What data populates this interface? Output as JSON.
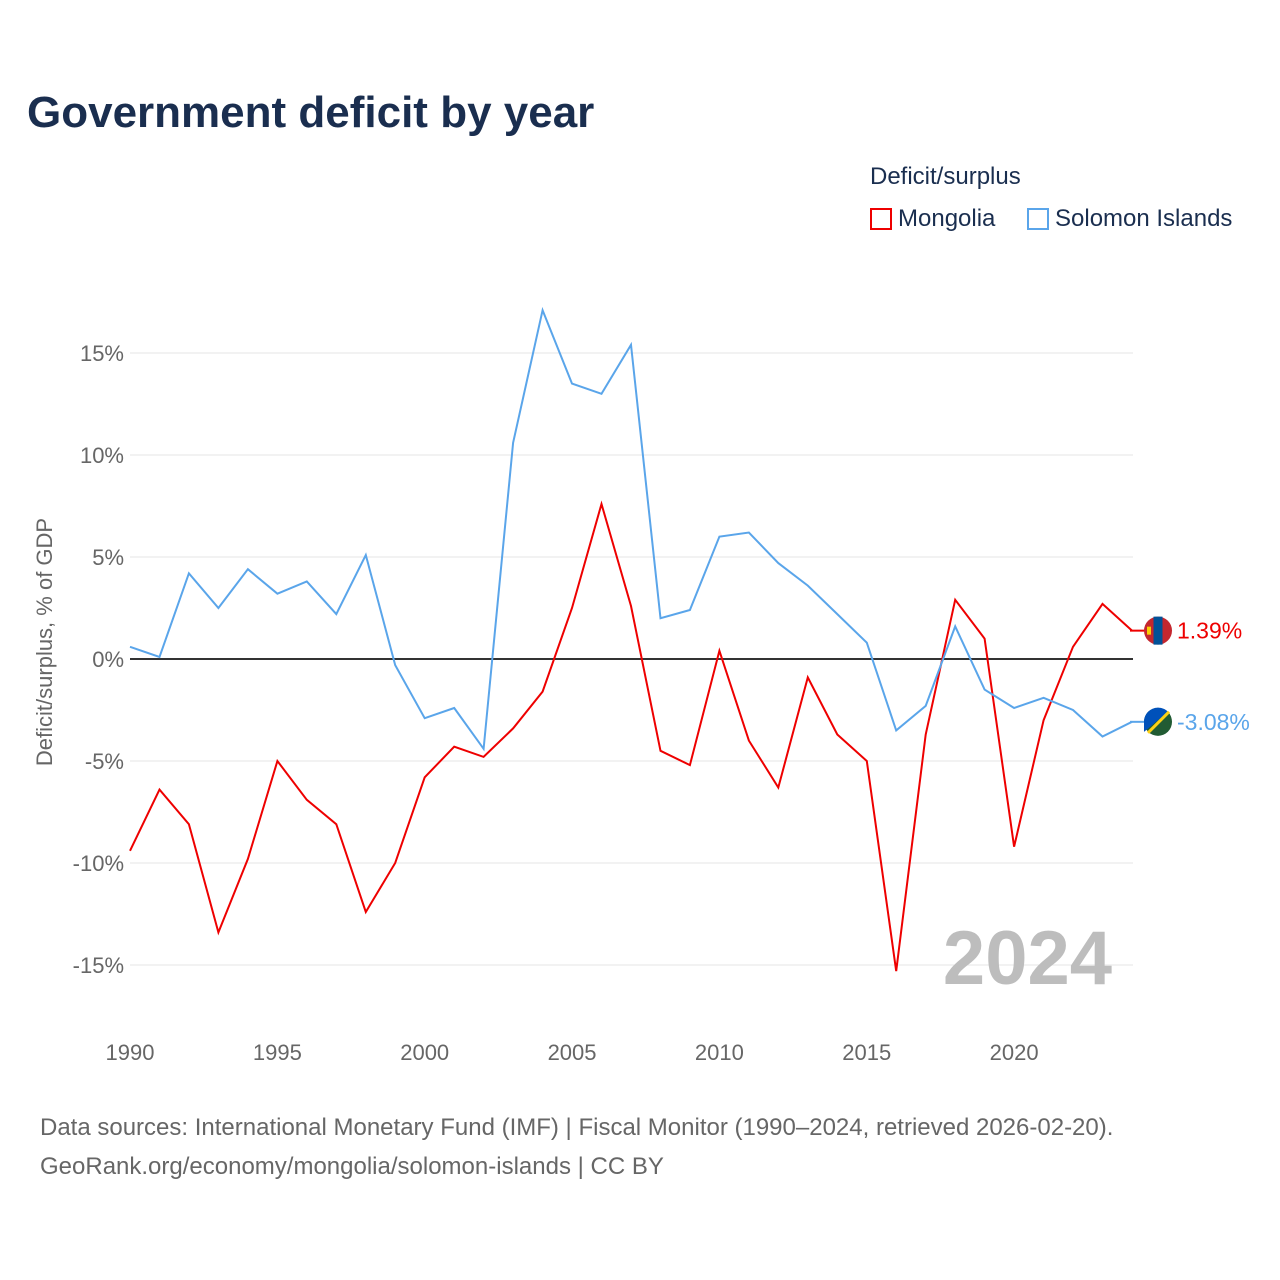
{
  "title": "Government deficit by year",
  "legend": {
    "title": "Deficit/surplus",
    "items": [
      {
        "name": "Mongolia",
        "color": "#ee0000"
      },
      {
        "name": "Solomon Islands",
        "color": "#5aa5ea"
      }
    ]
  },
  "watermark_year": "2024",
  "source_lines": [
    "Data sources: International Monetary Fund (IMF) | Fiscal Monitor (1990–2024, retrieved 2026-02-20).",
    "GeoRank.org/economy/mongolia/solomon-islands | CC BY"
  ],
  "end_labels": {
    "Mongolia": "1.39%",
    "Solomon Islands": "-3.08%"
  },
  "chart_data": {
    "type": "line",
    "title": "Government deficit by year",
    "xlabel": "",
    "ylabel": "Deficit/surplus, % of GDP",
    "xlim": [
      1990,
      2024
    ],
    "ylim": [
      -18,
      18
    ],
    "xticks": [
      1990,
      1995,
      2000,
      2005,
      2010,
      2015,
      2020
    ],
    "yticks": [
      15,
      10,
      5,
      0,
      -5,
      -10,
      -15
    ],
    "ytick_labels": [
      "15%",
      "10%",
      "5%",
      "0%",
      "-5%",
      "-10%",
      "-15%"
    ],
    "grid": true,
    "legend_position": "top-right",
    "x": [
      1990,
      1991,
      1992,
      1993,
      1994,
      1995,
      1996,
      1997,
      1998,
      1999,
      2000,
      2001,
      2002,
      2003,
      2004,
      2005,
      2006,
      2007,
      2008,
      2009,
      2010,
      2011,
      2012,
      2013,
      2014,
      2015,
      2016,
      2017,
      2018,
      2019,
      2020,
      2021,
      2022,
      2023,
      2024
    ],
    "series": [
      {
        "name": "Mongolia",
        "color": "#ee0000",
        "values": [
          -9.4,
          -6.4,
          -8.1,
          -13.4,
          -9.8,
          -5.0,
          -6.9,
          -8.1,
          -12.4,
          -10.0,
          -5.8,
          -4.3,
          -4.8,
          -3.4,
          -1.6,
          2.5,
          7.6,
          2.6,
          -4.5,
          -5.2,
          0.4,
          -4.0,
          -6.3,
          -0.9,
          -3.7,
          -5.0,
          -15.3,
          -3.7,
          2.9,
          1.0,
          -9.2,
          -3.0,
          0.6,
          2.7,
          1.39
        ]
      },
      {
        "name": "Solomon Islands",
        "color": "#5aa5ea",
        "values": [
          0.6,
          0.1,
          4.2,
          2.5,
          4.4,
          3.2,
          3.8,
          2.2,
          5.1,
          -0.3,
          -2.9,
          -2.4,
          -4.4,
          10.6,
          17.1,
          13.5,
          13.0,
          15.4,
          2.0,
          2.4,
          6.0,
          6.2,
          4.7,
          3.6,
          2.2,
          0.8,
          -3.5,
          -2.3,
          1.6,
          -1.5,
          -2.4,
          -1.9,
          -2.5,
          -3.8,
          -3.08
        ]
      }
    ]
  }
}
